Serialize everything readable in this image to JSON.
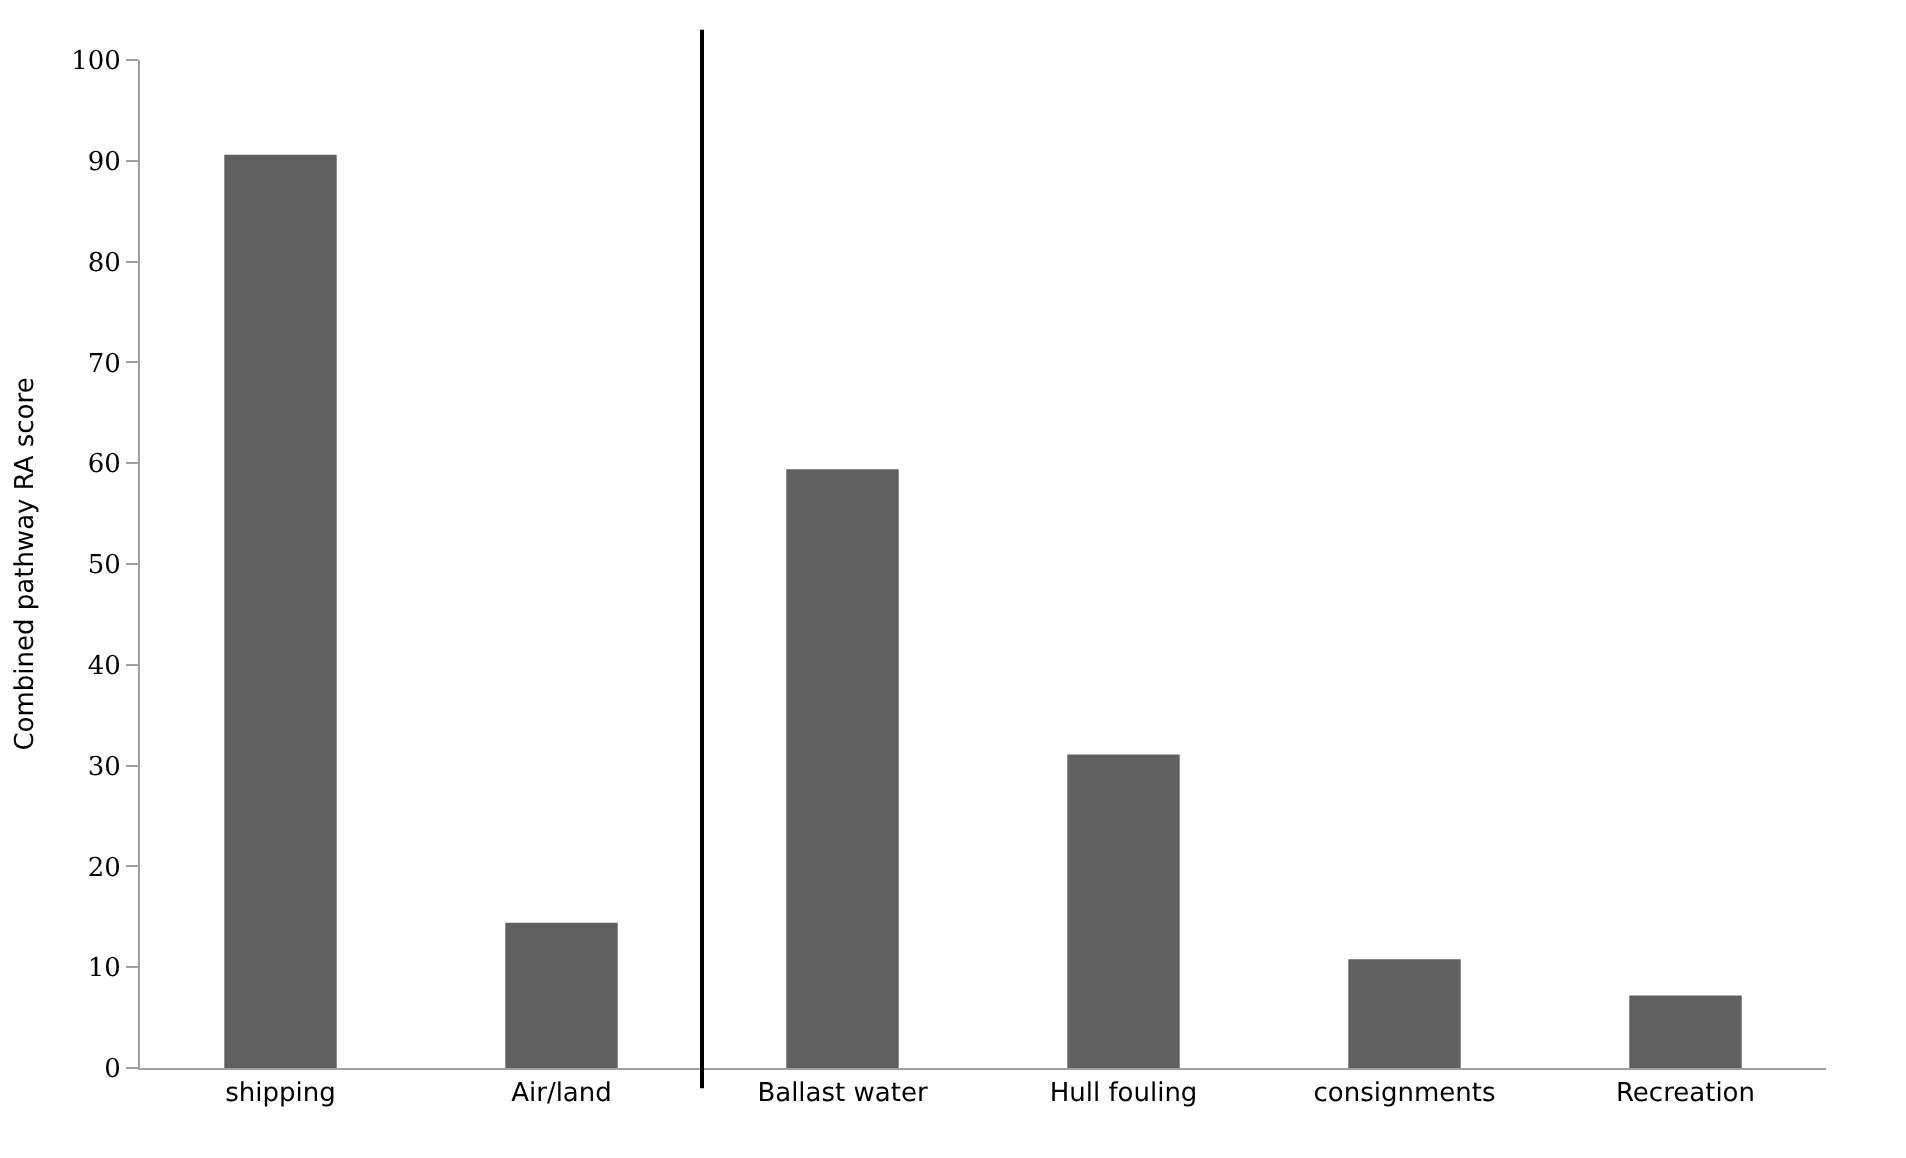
{
  "chart_data": {
    "type": "bar",
    "ylabel": "Combined pathway RA score",
    "categories": [
      "shipping",
      "Air/land",
      "Ballast water",
      "Hull fouling",
      "consignments",
      "Recreation"
    ],
    "values": [
      90.6,
      14.4,
      59.4,
      31.1,
      10.8,
      7.2
    ],
    "color": "#606060",
    "ylim": [
      0,
      100
    ],
    "yticks": [
      0,
      10,
      20,
      30,
      40,
      50,
      60,
      70,
      80,
      90,
      100
    ]
  }
}
